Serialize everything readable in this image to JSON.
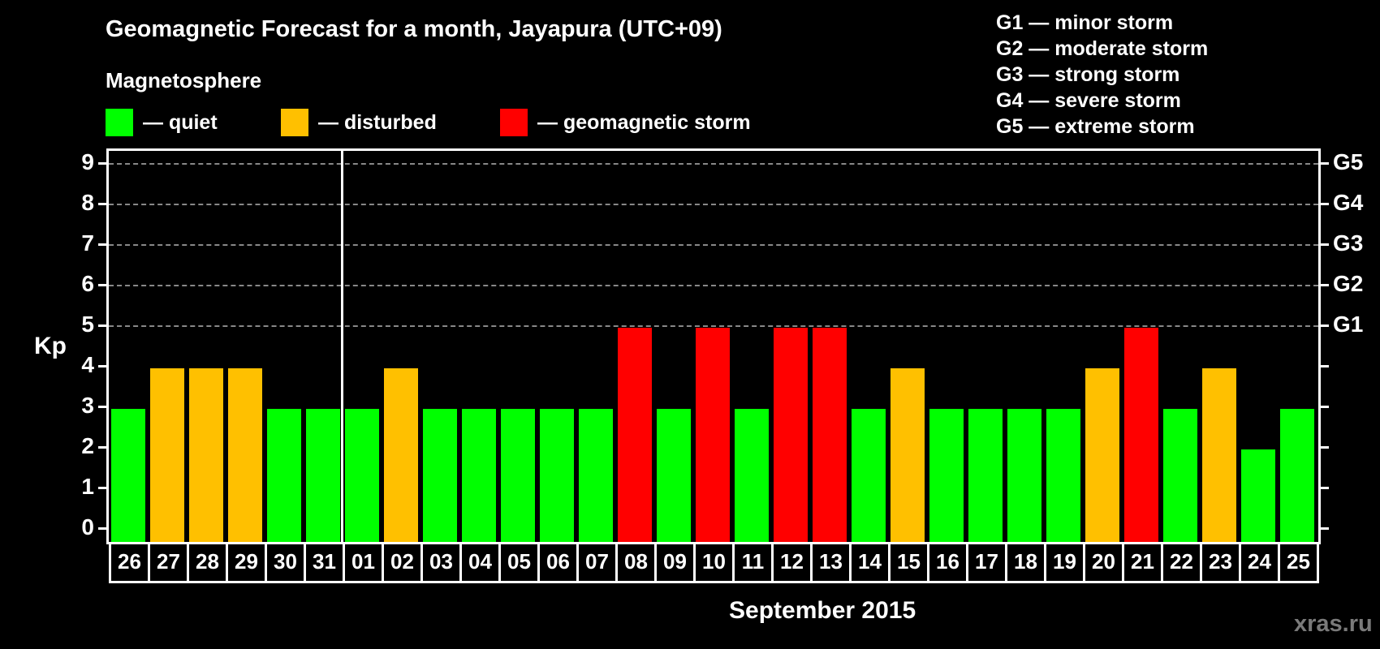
{
  "header": {
    "title": "Geomagnetic Forecast for a month, Jayapura (UTC+09)",
    "magnetosphere_label": "Magnetosphere"
  },
  "legend": [
    {
      "label": "— quiet",
      "color": "#00ff00"
    },
    {
      "label": "— disturbed",
      "color": "#ffc000"
    },
    {
      "label": "— geomagnetic storm",
      "color": "#ff0000"
    }
  ],
  "storm_scale": [
    "G1 — minor storm",
    "G2 — moderate storm",
    "G3 — strong storm",
    "G4 — severe storm",
    "G5 — extreme storm"
  ],
  "axis": {
    "y_label": "Kp",
    "y_ticks": [
      "0",
      "1",
      "2",
      "3",
      "4",
      "5",
      "6",
      "7",
      "8",
      "9"
    ],
    "g_ticks": [
      {
        "kp": 5,
        "label": "G1"
      },
      {
        "kp": 6,
        "label": "G2"
      },
      {
        "kp": 7,
        "label": "G3"
      },
      {
        "kp": 8,
        "label": "G4"
      },
      {
        "kp": 9,
        "label": "G5"
      }
    ],
    "month_label": "September 2015"
  },
  "watermark": "xras.ru",
  "colors": {
    "quiet": "#00ff00",
    "disturbed": "#ffc000",
    "storm": "#ff0000",
    "background": "#000000",
    "grid": "#888888"
  },
  "chart_data": {
    "type": "bar",
    "title": "Geomagnetic Forecast for a month, Jayapura (UTC+09)",
    "xlabel": "September 2015",
    "ylabel": "Kp",
    "ylim": [
      0,
      9
    ],
    "grid": "horizontal dashed at Kp 5-9",
    "secondary_y_labels": {
      "5": "G1",
      "6": "G2",
      "7": "G3",
      "8": "G4",
      "9": "G5"
    },
    "categories": [
      "26",
      "27",
      "28",
      "29",
      "30",
      "31",
      "01",
      "02",
      "03",
      "04",
      "05",
      "06",
      "07",
      "08",
      "09",
      "10",
      "11",
      "12",
      "13",
      "14",
      "15",
      "16",
      "17",
      "18",
      "19",
      "20",
      "21",
      "22",
      "23",
      "24",
      "25"
    ],
    "values": [
      3,
      4,
      4,
      4,
      3,
      3,
      3,
      4,
      3,
      3,
      3,
      3,
      3,
      5,
      3,
      5,
      3,
      5,
      5,
      3,
      4,
      3,
      3,
      3,
      3,
      4,
      5,
      3,
      4,
      2,
      3
    ],
    "status": [
      "quiet",
      "disturbed",
      "disturbed",
      "disturbed",
      "quiet",
      "quiet",
      "quiet",
      "disturbed",
      "quiet",
      "quiet",
      "quiet",
      "quiet",
      "quiet",
      "storm",
      "quiet",
      "storm",
      "quiet",
      "storm",
      "storm",
      "quiet",
      "disturbed",
      "quiet",
      "quiet",
      "quiet",
      "quiet",
      "disturbed",
      "storm",
      "quiet",
      "disturbed",
      "quiet",
      "quiet"
    ],
    "legend": [
      "quiet",
      "disturbed",
      "geomagnetic storm"
    ],
    "month_divider_after": "31"
  }
}
